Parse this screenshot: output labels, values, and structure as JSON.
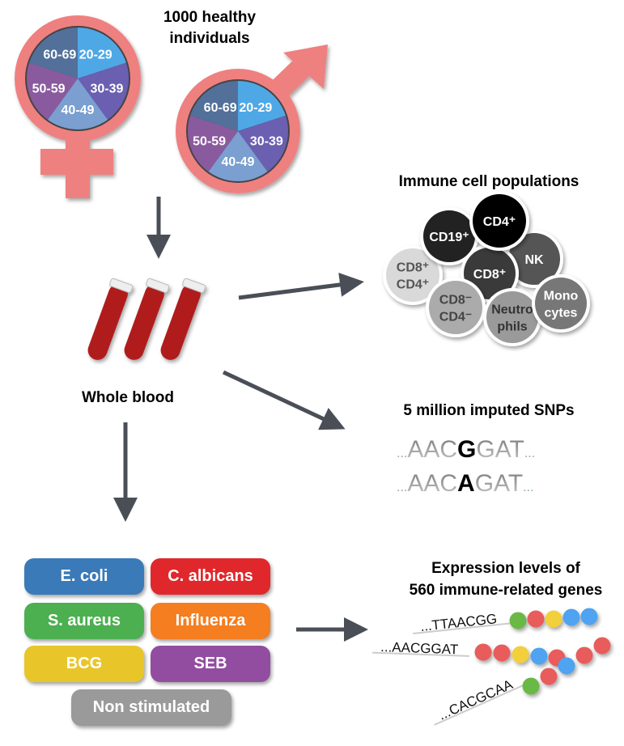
{
  "title": "1000 healthy individuals",
  "title_lines": [
    "1000 healthy",
    "individuals"
  ],
  "colors": {
    "symbol": "#ef8080",
    "arrow": "#4a4f57",
    "blood": "#b01c1c"
  },
  "age_groups": [
    {
      "label": "20-29",
      "color": "#4fa8e6"
    },
    {
      "label": "30-39",
      "color": "#6a5fb0"
    },
    {
      "label": "40-49",
      "color": "#7a9fd0"
    },
    {
      "label": "50-59",
      "color": "#8a5a9e"
    },
    {
      "label": "60-69",
      "color": "#52709a"
    }
  ],
  "sexes": [
    {
      "icon": "female-symbol-icon"
    },
    {
      "icon": "male-symbol-icon"
    }
  ],
  "whole_blood": "Whole blood",
  "immune_cells": {
    "title": "Immune cell populations",
    "cells": [
      {
        "lines": [
          "CD8⁺",
          "CD4⁺"
        ],
        "fill": "#d9d9d9",
        "text": "#555555"
      },
      {
        "lines": [
          "CD19⁺"
        ],
        "fill": "#222222",
        "text": "#ffffff"
      },
      {
        "lines": [
          "NK"
        ],
        "fill": "#555555",
        "text": "#ffffff"
      },
      {
        "lines": [
          "CD8⁺"
        ],
        "fill": "#3a3a3a",
        "text": "#ffffff"
      },
      {
        "lines": [
          "CD4⁺"
        ],
        "fill": "#000000",
        "text": "#ffffff"
      },
      {
        "lines": [
          "CD8⁻",
          "CD4⁻"
        ],
        "fill": "#ababab",
        "text": "#444444"
      },
      {
        "lines": [
          "Neutro",
          "phils"
        ],
        "fill": "#9a9a9a",
        "text": "#333333"
      },
      {
        "lines": [
          "Mono",
          "cytes"
        ],
        "fill": "#777777",
        "text": "#ffffff"
      }
    ]
  },
  "snps": {
    "title": "5 million imputed SNPs",
    "rows": [
      {
        "prefix": "...",
        "before": "AAC",
        "allele": "G",
        "after": "GAT",
        "suffix": "..."
      },
      {
        "prefix": "...",
        "before": "AAC",
        "allele": "A",
        "after": "GAT",
        "suffix": "..."
      }
    ]
  },
  "stimuli": [
    {
      "label": "E. coli",
      "color": "#3a7ab8"
    },
    {
      "label": "C. albicans",
      "color": "#e0282c"
    },
    {
      "label": "S. aureus",
      "color": "#4caf50"
    },
    {
      "label": "Influenza",
      "color": "#f47e20"
    },
    {
      "label": "BCG",
      "color": "#e8c62a"
    },
    {
      "label": "SEB",
      "color": "#924da0"
    },
    {
      "label": "Non stimulated",
      "color": "#9a9a9a"
    }
  ],
  "expression": {
    "title_lines": [
      "Expression levels of",
      "560 immune-related genes"
    ],
    "rows": [
      {
        "seq": "...TTAACGG",
        "beads": [
          "#6bb845",
          "#e85c5c",
          "#f2cf3b",
          "#4fa3f0",
          "#4fa3f0"
        ]
      },
      {
        "seq": "...AACGGAT",
        "beads": [
          "#e85c5c",
          "#e85c5c",
          "#f2cf3b",
          "#4fa3f0",
          "#e85c5c"
        ]
      },
      {
        "seq": "...CACGCAA",
        "beads": [
          "#6bb845",
          "#e85c5c",
          "#4fa3f0",
          "#e85c5c",
          "#e85c5c"
        ]
      }
    ]
  }
}
